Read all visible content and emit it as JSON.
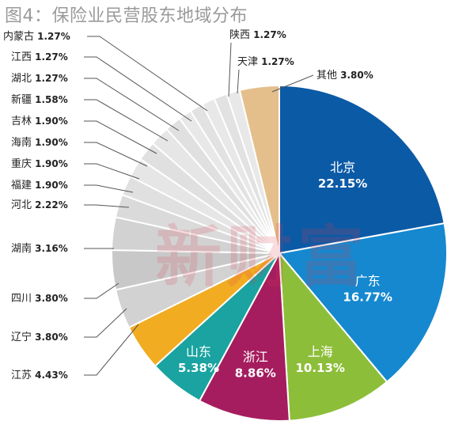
{
  "title": "图4：保险业民营股东地域分布",
  "watermark": "新财富",
  "chart_data": {
    "type": "pie",
    "title": "图4：保险业民营股东地域分布",
    "slices": [
      {
        "label": "北京",
        "value": 22.15,
        "value_label": "22.15%",
        "color": "#0b5aa6",
        "label_inside": true
      },
      {
        "label": "广东",
        "value": 16.77,
        "value_label": "16.77%",
        "color": "#1588cf",
        "label_inside": true
      },
      {
        "label": "上海",
        "value": 10.13,
        "value_label": "10.13%",
        "color": "#8dbe3a",
        "label_inside": true
      },
      {
        "label": "浙江",
        "value": 8.86,
        "value_label": "8.86%",
        "color": "#a51d5e",
        "label_inside": true
      },
      {
        "label": "山东",
        "value": 5.38,
        "value_label": "5.38%",
        "color": "#1aa3a0",
        "label_inside": true
      },
      {
        "label": "江苏",
        "value": 4.43,
        "value_label": "4.43%",
        "color": "#f2ac22",
        "label_inside": false
      },
      {
        "label": "辽宁",
        "value": 3.8,
        "value_label": "3.80%",
        "color": "#d2d2d2",
        "label_inside": false
      },
      {
        "label": "四川",
        "value": 3.8,
        "value_label": "3.80%",
        "color": "#c8c8c8",
        "label_inside": false
      },
      {
        "label": "湖南",
        "value": 3.16,
        "value_label": "3.16%",
        "color": "#d2d2d2",
        "label_inside": false
      },
      {
        "label": "河北",
        "value": 2.22,
        "value_label": "2.22%",
        "color": "#dadada",
        "label_inside": false
      },
      {
        "label": "福建",
        "value": 1.9,
        "value_label": "1.90%",
        "color": "#e0e0e0",
        "label_inside": false
      },
      {
        "label": "重庆",
        "value": 1.9,
        "value_label": "1.90%",
        "color": "#e6e6e6",
        "label_inside": false
      },
      {
        "label": "海南",
        "value": 1.9,
        "value_label": "1.90%",
        "color": "#e0e0e0",
        "label_inside": false
      },
      {
        "label": "吉林",
        "value": 1.9,
        "value_label": "1.90%",
        "color": "#e6e6e6",
        "label_inside": false
      },
      {
        "label": "新疆",
        "value": 1.58,
        "value_label": "1.58%",
        "color": "#e0e0e0",
        "label_inside": false
      },
      {
        "label": "湖北",
        "value": 1.27,
        "value_label": "1.27%",
        "color": "#e8e8e8",
        "label_inside": false
      },
      {
        "label": "江西",
        "value": 1.27,
        "value_label": "1.27%",
        "color": "#e2e2e2",
        "label_inside": false
      },
      {
        "label": "内蒙古",
        "value": 1.27,
        "value_label": "1.27%",
        "color": "#e8e8e8",
        "label_inside": false
      },
      {
        "label": "陕西",
        "value": 1.27,
        "value_label": "1.27%",
        "color": "#e2e2e2",
        "label_inside": false
      },
      {
        "label": "天津",
        "value": 1.27,
        "value_label": "1.27%",
        "color": "#e8e8e8",
        "label_inside": false
      },
      {
        "label": "其他",
        "value": 3.8,
        "value_label": "3.80%",
        "color": "#e4bf8c",
        "label_inside": false
      }
    ]
  }
}
